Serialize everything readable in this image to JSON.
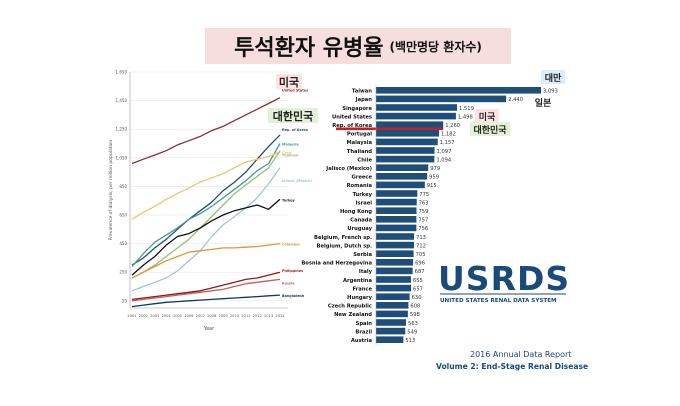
{
  "title": "투석환자 유병율",
  "subtitle": "(백만명당 환자수)",
  "chart_data": [
    {
      "type": "line",
      "xlabel": "Year",
      "ylabel": "Prevalence of dialysis, per million population",
      "x": [
        "2001",
        "2002",
        "2003",
        "2004",
        "2005",
        "2006",
        "2007",
        "2008",
        "2009",
        "2010",
        "2011",
        "2012",
        "2013",
        "2014"
      ],
      "ylim": [
        0,
        1650
      ],
      "yticks": [
        50,
        250,
        450,
        650,
        850,
        1050,
        1250,
        1450,
        1650
      ],
      "ytick_labels": [
        "50",
        "250",
        "450",
        "650",
        "850",
        "1,050",
        "1,250",
        "1,450",
        "1,650"
      ],
      "series": [
        {
          "name": "United States",
          "color": "#8b2e2e",
          "values": [
            1010,
            1040,
            1070,
            1100,
            1140,
            1170,
            1200,
            1240,
            1270,
            1310,
            1350,
            1390,
            1430,
            1470
          ]
        },
        {
          "name": "Rep. of Korea",
          "color": "#1f4e79",
          "values": [
            300,
            350,
            420,
            480,
            550,
            620,
            680,
            740,
            820,
            880,
            950,
            1040,
            1130,
            1210
          ]
        },
        {
          "name": "Malaysia",
          "color": "#4a9a8e",
          "values": [
            290,
            380,
            460,
            510,
            560,
            620,
            660,
            710,
            770,
            830,
            890,
            960,
            1010,
            1150
          ]
        },
        {
          "name": "Chile",
          "color": "#e8c86a",
          "values": [
            620,
            670,
            710,
            760,
            800,
            840,
            880,
            910,
            940,
            980,
            1020,
            1040,
            1060,
            1090
          ]
        },
        {
          "name": "Thailand",
          "color": "#8fbf7a",
          "values": [
            210,
            250,
            300,
            360,
            420,
            480,
            560,
            640,
            720,
            800,
            860,
            920,
            980,
            1100
          ]
        },
        {
          "name": "Jalisco (Mexico)",
          "color": "#a0c4d8",
          "values": [
            120,
            150,
            180,
            210,
            260,
            330,
            400,
            500,
            580,
            640,
            700,
            770,
            870,
            980
          ]
        },
        {
          "name": "Turkey",
          "color": "#111111",
          "values": [
            230,
            300,
            360,
            440,
            500,
            520,
            560,
            610,
            650,
            680,
            700,
            720,
            690,
            760
          ]
        },
        {
          "name": "Colombia",
          "color": "#e0953a",
          "values": [
            210,
            250,
            290,
            330,
            360,
            390,
            400,
            410,
            420,
            420,
            425,
            430,
            440,
            450
          ]
        },
        {
          "name": "Philippines",
          "color": "#8b1a1a",
          "values": [
            60,
            70,
            80,
            90,
            100,
            110,
            120,
            140,
            160,
            180,
            200,
            210,
            230,
            250
          ]
        },
        {
          "name": "Russia",
          "color": "#c06060",
          "values": [
            50,
            60,
            70,
            80,
            90,
            100,
            110,
            120,
            130,
            150,
            170,
            180,
            190,
            200
          ]
        },
        {
          "name": "Bangladesh",
          "color": "#123a5c",
          "values": [
            10,
            20,
            30,
            40,
            45,
            50,
            55,
            60,
            65,
            70,
            75,
            80,
            85,
            90
          ]
        }
      ],
      "line_labels": {
        "United States": "United States",
        "Rep. of Korea": "Rep. of Korea",
        "Malaysia": "Malaysia",
        "Chile": "Chile",
        "Thailand": "Thailand",
        "Jalisco (Mexico)": "Jalisco (Mexico)",
        "Turkey": "Turkey",
        "Colombia": "Colombia",
        "Philippines": "Philippines",
        "Russia": "Russia",
        "Bangladesh": "Bangladesh"
      },
      "callouts": {
        "us": "미국",
        "korea": "대한민국"
      }
    },
    {
      "type": "bar",
      "orientation": "horizontal",
      "bar_color": "#1f4e79",
      "highlight_color": "#c0222a",
      "highlight_category": "Rep. of Korea",
      "categories": [
        "Taiwan",
        "Japan",
        "Singapore",
        "United States",
        "Rep. of Korea",
        "Portugal",
        "Malaysia",
        "Thailand",
        "Chile",
        "Jalisco (Mexico)",
        "Greece",
        "Romania",
        "Turkey",
        "Israel",
        "Hong Kong",
        "Canada",
        "Uruguay",
        "Belgium, French sp.",
        "Belgium, Dutch sp.",
        "Serbia",
        "Bosnia and Herzegovina",
        "Italy",
        "Argentina",
        "France",
        "Hungary",
        "Czech Republic",
        "New Zealand",
        "Spain",
        "Brazil",
        "Austria"
      ],
      "values": [
        3093,
        2440,
        1519,
        1498,
        1260,
        1182,
        1157,
        1097,
        1094,
        979,
        959,
        915,
        775,
        763,
        759,
        757,
        756,
        713,
        712,
        705,
        696,
        687,
        655,
        657,
        630,
        608,
        598,
        563,
        549,
        513
      ],
      "value_labels": [
        "3,093",
        "2,440",
        "1,519",
        "1,498",
        "1,260",
        "1,182",
        "1,157",
        "1,097",
        "1,094",
        "979",
        "959",
        "915",
        "775",
        "763",
        "759",
        "757",
        "756",
        "713",
        "712",
        "705",
        "696",
        "687",
        "655",
        "657",
        "630",
        "608",
        "598",
        "563",
        "549",
        "513"
      ],
      "callouts": {
        "taiwan": "대만",
        "japan": "일본",
        "us": "미국",
        "korea": "대한민국"
      }
    }
  ],
  "logo": {
    "name": "USRDS",
    "tagline": "UNITED STATES RENAL DATA SYSTEM",
    "report_line1": "2016 Annual Data Report",
    "report_line2": "Volume 2: End-Stage Renal Disease"
  },
  "colors": {
    "title_bg": "#f6dede",
    "callout_bg": "#fbe3e3",
    "callout_green_bg": "#e3f2d6",
    "callout_blue_bg": "#dcecf8"
  }
}
